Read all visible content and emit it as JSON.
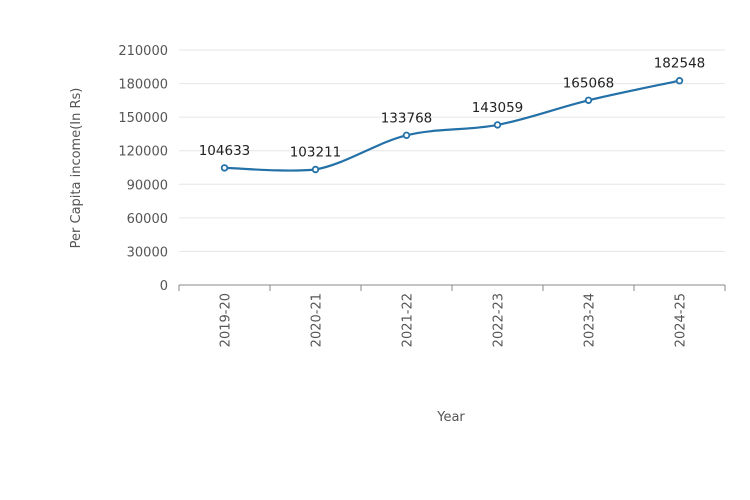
{
  "chart_data": {
    "type": "line",
    "categories": [
      "2019-20",
      "2020-21",
      "2021-22",
      "2022-23",
      "2023-24",
      "2024-25"
    ],
    "series": [
      {
        "values": [
          104633,
          103211,
          133768,
          143059,
          165068,
          182548
        ]
      }
    ],
    "data_labels": [
      "104633",
      "103211",
      "133768",
      "143059",
      "165068",
      "182548"
    ],
    "title": "",
    "xlabel": "Year",
    "ylabel": "Per Capita income(In Rs)",
    "ylim": [
      0,
      210000
    ],
    "yticks": [
      0,
      30000,
      60000,
      90000,
      120000,
      150000,
      180000,
      210000
    ],
    "ytick_labels": [
      "0",
      "30000",
      "60000",
      "90000",
      "120000",
      "150000",
      "180000",
      "210000"
    ],
    "grid": true,
    "legend": "none",
    "colors": {
      "line": "#2471a8",
      "grid": "#e6e6e6",
      "axis": "#888888"
    }
  }
}
